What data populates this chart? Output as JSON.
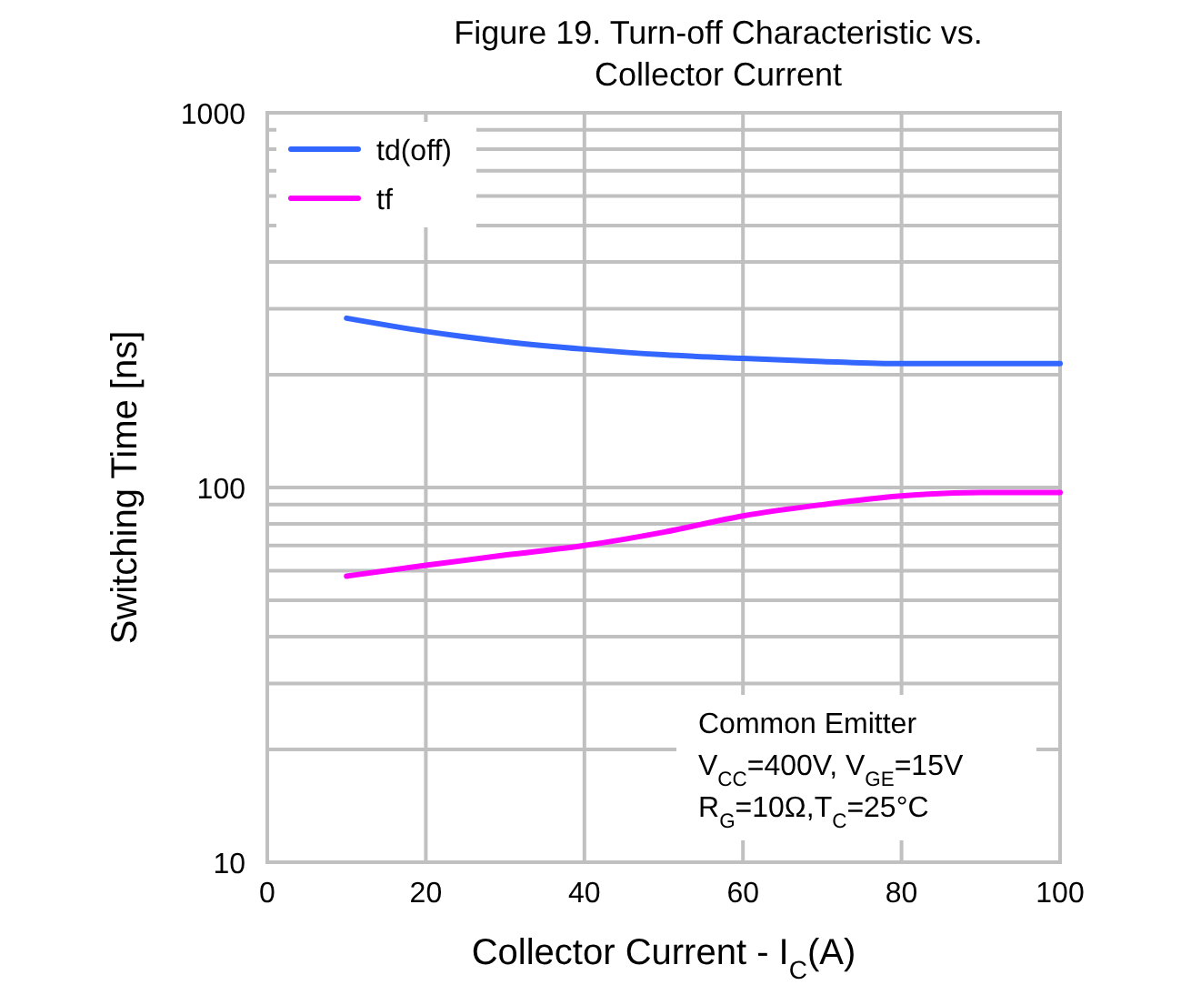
{
  "chart_data": {
    "type": "line",
    "title": "Figure 19. Turn-off Characteristic vs. Collector Current",
    "xlabel": "Collector  Current - I$_{C}$(A)",
    "ylabel": "Switching Time [ns]",
    "x": [
      10,
      20,
      30,
      40,
      50,
      60,
      70,
      80,
      90,
      100
    ],
    "series": [
      {
        "name": "td(off)",
        "color": "#3366ff",
        "values": [
          283,
          261,
          245,
          234,
          226,
          221,
          217,
          214,
          214,
          214
        ]
      },
      {
        "name": "tf",
        "color": "#ff00ff",
        "values": [
          58,
          62,
          66,
          70,
          76,
          84,
          90,
          95,
          97,
          97
        ]
      }
    ],
    "xlim": [
      0,
      100
    ],
    "xticks": [
      0,
      20,
      40,
      60,
      80,
      100
    ],
    "ylim": [
      10,
      1000
    ],
    "yticks": [
      10,
      {
        "value": 20,
        "label": null
      },
      {
        "value": 30,
        "label": null
      },
      {
        "value": 40,
        "label": null
      },
      {
        "value": 50,
        "label": null
      },
      {
        "value": 60,
        "label": null
      },
      {
        "value": 70,
        "label": null
      },
      {
        "value": 80,
        "label": null
      },
      {
        "value": 90,
        "label": null
      },
      100,
      {
        "value": 200,
        "label": null
      },
      {
        "value": 300,
        "label": null
      },
      {
        "value": 400,
        "label": null
      },
      {
        "value": 500,
        "label": null
      },
      {
        "value": 600,
        "label": null
      },
      {
        "value": 700,
        "label": null
      },
      {
        "value": 800,
        "label": null
      },
      {
        "value": 900,
        "label": null
      },
      1000
    ],
    "log": true,
    "grid": true,
    "legend": "top left",
    "marker": "none",
    "line_style": "solid",
    "annotations": [
      "Common Emitter",
      "V$_{CC}$=400V, V$_{GE}$=15V",
      "R$_{G}$=10Ω,T$_{C}$=25°C"
    ]
  }
}
